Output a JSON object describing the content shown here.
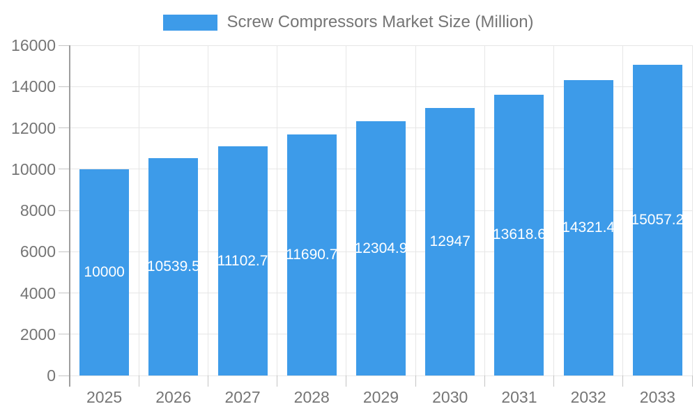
{
  "chart_data": {
    "type": "bar",
    "title": "Screw Compressors Market Size (Million)",
    "categories": [
      "2025",
      "2026",
      "2027",
      "2028",
      "2029",
      "2030",
      "2031",
      "2032",
      "2033"
    ],
    "series": [
      {
        "name": "Screw Compressors Market Size (Million)",
        "values": [
          10000,
          10539.5,
          11102.7,
          11690.7,
          12304.9,
          12947,
          13618.6,
          14321.4,
          15057.2
        ]
      }
    ],
    "value_labels": [
      "10000",
      "10539.5",
      "11102.7",
      "11690.7",
      "12304.9",
      "12947",
      "13618.6",
      "14321.4",
      "15057.2"
    ],
    "xlabel": "",
    "ylabel": "",
    "ylim": [
      0,
      16000
    ],
    "ytick_step": 2000,
    "grid": true,
    "legend_position": "top",
    "colors": {
      "bar": "#3D9BE9",
      "bar_value_text": "#ffffff",
      "axis_text": "#757575",
      "grid_line": "#e6e6e6",
      "tick_line": "#c4c4c4",
      "axis_line": "#9e9e9e",
      "background": "#ffffff"
    }
  },
  "legend": {
    "label": "Screw Compressors Market Size (Million)"
  }
}
